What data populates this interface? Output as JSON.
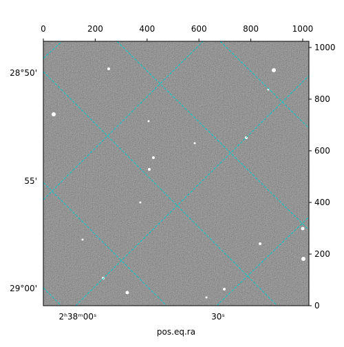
{
  "chart_data": {
    "type": "image",
    "x_label": "pos.eq.ra",
    "xlim": [
      0,
      1024
    ],
    "xticks": [
      0,
      200,
      400,
      600,
      800,
      1000
    ],
    "ylim": [
      0,
      1024
    ],
    "yticks": [
      0,
      200,
      400,
      600,
      800,
      1000
    ],
    "ra_ticks": [
      "2ʰ38ᵐ00ˢ",
      "30ˢ"
    ],
    "dec_ticks": [
      "28°50'",
      "55'",
      "29°00'"
    ],
    "grid_color": "#00cccc"
  }
}
